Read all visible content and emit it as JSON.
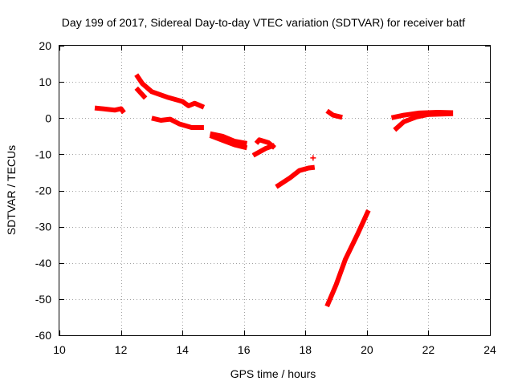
{
  "chart_data": {
    "type": "scatter",
    "title": "Day 199 of 2017, Sidereal Day-to-day VTEC variation (SDTVAR) for receiver batf",
    "xlabel": "GPS time / hours",
    "ylabel": "SDTVAR / TECUs",
    "xlim": [
      10,
      24
    ],
    "ylim": [
      -60,
      20
    ],
    "xticks": [
      10,
      12,
      14,
      16,
      18,
      20,
      22,
      24
    ],
    "yticks": [
      20,
      10,
      0,
      -10,
      -20,
      -30,
      -40,
      -50,
      -60
    ],
    "grid": true,
    "series_color": "#ff0000",
    "marker": "plus",
    "segments": [
      [
        [
          11.15,
          2.8
        ],
        [
          11.5,
          2.5
        ],
        [
          11.8,
          2.2
        ],
        [
          12.0,
          2.6
        ],
        [
          12.1,
          1.5
        ]
      ],
      [
        [
          12.5,
          12.0
        ],
        [
          12.7,
          9.5
        ],
        [
          13.0,
          7.3
        ],
        [
          13.5,
          5.8
        ],
        [
          14.0,
          4.6
        ],
        [
          14.2,
          3.4
        ],
        [
          14.4,
          4.1
        ],
        [
          14.7,
          3.0
        ]
      ],
      [
        [
          12.5,
          8.3
        ],
        [
          12.8,
          5.5
        ]
      ],
      [
        [
          13.0,
          0.0
        ],
        [
          13.3,
          -0.6
        ],
        [
          13.6,
          -0.3
        ],
        [
          13.9,
          -1.6
        ],
        [
          14.3,
          -2.6
        ],
        [
          14.7,
          -2.6
        ]
      ],
      [
        [
          14.9,
          -4.3
        ],
        [
          15.3,
          -5.0
        ],
        [
          15.7,
          -6.4
        ],
        [
          16.1,
          -7.0
        ]
      ],
      [
        [
          14.9,
          -4.8
        ],
        [
          15.3,
          -6.1
        ],
        [
          15.7,
          -7.4
        ],
        [
          16.1,
          -8.2
        ]
      ],
      [
        [
          16.4,
          -7.0
        ],
        [
          16.5,
          -6.0
        ],
        [
          16.8,
          -6.8
        ],
        [
          17.0,
          -8.2
        ]
      ],
      [
        [
          16.3,
          -10.3
        ],
        [
          16.7,
          -8.4
        ],
        [
          17.0,
          -7.5
        ]
      ],
      [
        [
          17.05,
          -19.0
        ],
        [
          17.5,
          -16.5
        ],
        [
          17.8,
          -14.5
        ],
        [
          18.1,
          -13.8
        ],
        [
          18.3,
          -13.6
        ]
      ],
      [
        [
          18.7,
          -52.0
        ],
        [
          19.0,
          -46.0
        ],
        [
          19.3,
          -39.0
        ],
        [
          19.7,
          -32.0
        ],
        [
          20.05,
          -25.5
        ]
      ],
      [
        [
          18.7,
          2.0
        ],
        [
          18.9,
          0.8
        ],
        [
          19.2,
          0.2
        ]
      ],
      [
        [
          20.8,
          0.1
        ],
        [
          21.2,
          0.8
        ],
        [
          21.7,
          1.4
        ],
        [
          22.3,
          1.6
        ],
        [
          22.8,
          1.5
        ]
      ],
      [
        [
          20.9,
          -3.3
        ],
        [
          21.2,
          -1.0
        ],
        [
          21.6,
          0.3
        ],
        [
          22.0,
          1.0
        ],
        [
          22.8,
          1.2
        ]
      ]
    ],
    "points": [
      [
        18.25,
        -11.0
      ]
    ]
  }
}
